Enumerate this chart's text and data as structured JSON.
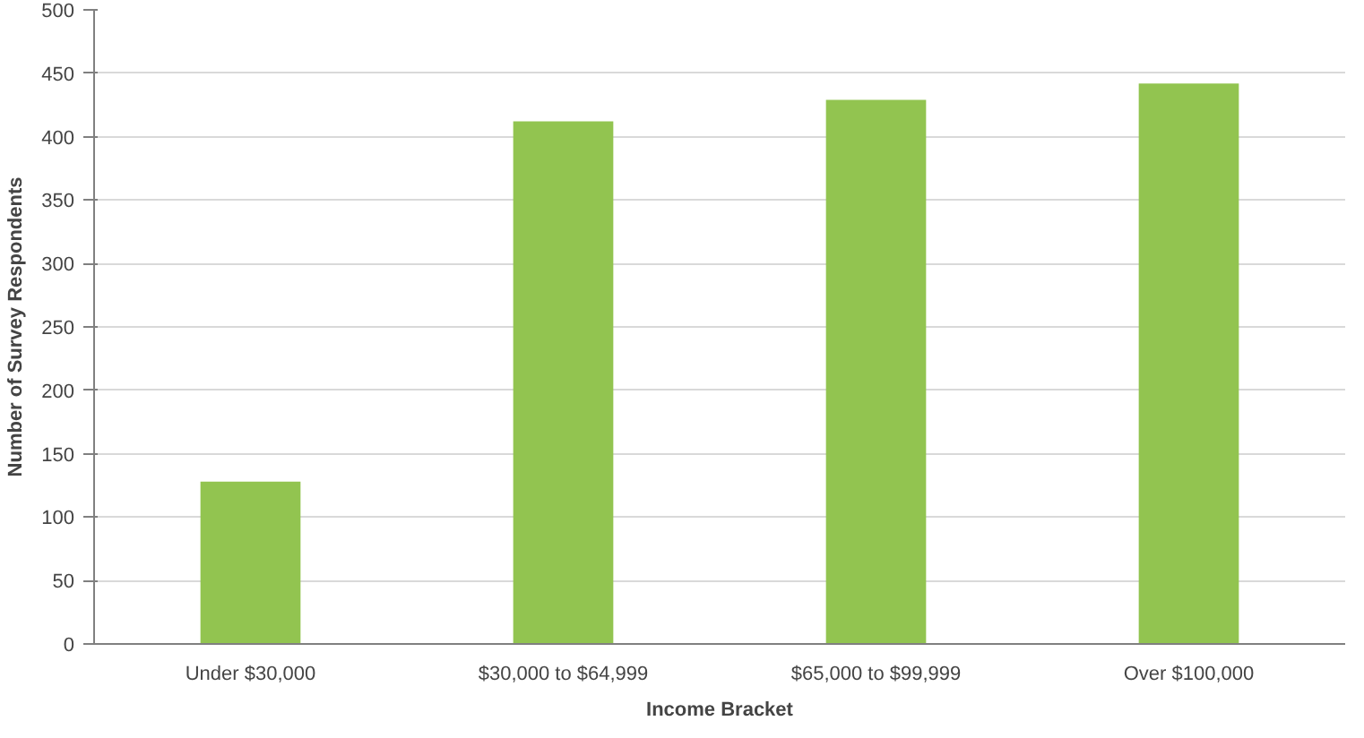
{
  "chart_data": {
    "type": "bar",
    "xlabel": "Income Bracket",
    "ylabel": "Number of Survey Respondents",
    "categories": [
      "Under $30,000",
      "$30,000 to $64,999",
      "$65,000 to $99,999",
      "Over $100,000"
    ],
    "values": [
      128,
      412,
      429,
      442
    ],
    "color": "#92c450",
    "ylim": [
      0,
      500
    ],
    "yticks": [
      0,
      50,
      100,
      150,
      200,
      250,
      300,
      350,
      400,
      450,
      500
    ],
    "grid": "y"
  }
}
